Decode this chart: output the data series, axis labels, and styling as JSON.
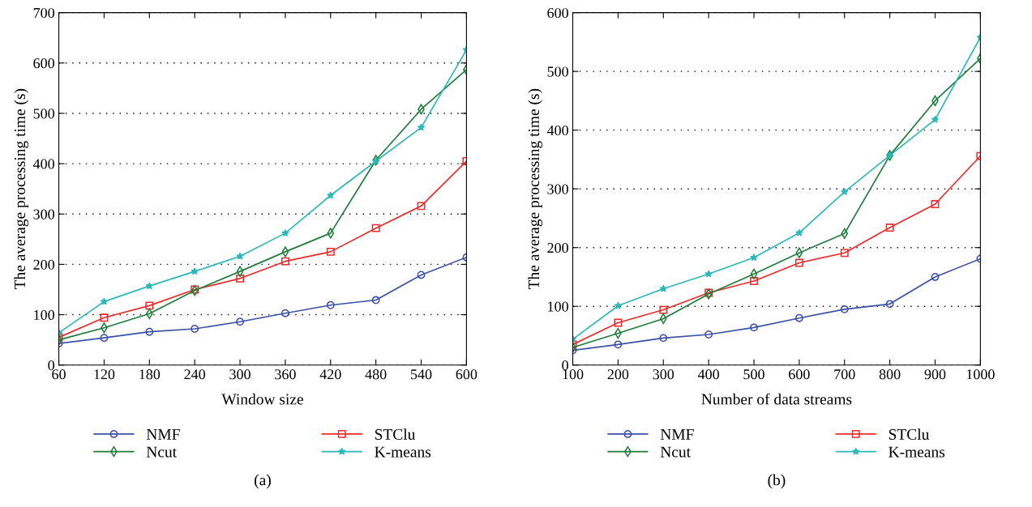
{
  "chart_data": [
    {
      "type": "line",
      "xlabel": "Window size",
      "ylabel": "The average processing time (s)",
      "x": [
        60,
        120,
        180,
        240,
        300,
        360,
        420,
        480,
        540,
        600
      ],
      "xlim": [
        60,
        600
      ],
      "xticks": [
        60,
        120,
        180,
        240,
        300,
        360,
        420,
        480,
        540,
        600
      ],
      "ylim": [
        0,
        700
      ],
      "yticks": [
        0,
        100,
        200,
        300,
        400,
        500,
        600,
        700
      ],
      "grid": "y",
      "legend": "bottom",
      "annotations": [
        "(a)"
      ],
      "series": [
        {
          "name": "NMF",
          "color": "#3a50a8",
          "marker": "circle",
          "values": [
            43,
            54,
            66,
            72,
            86,
            103,
            119,
            129,
            179,
            214
          ]
        },
        {
          "name": "STClu",
          "color": "#ee2a2a",
          "marker": "square",
          "values": [
            55,
            94,
            118,
            150,
            172,
            206,
            225,
            272,
            316,
            405
          ]
        },
        {
          "name": "Ncut",
          "color": "#1e7d3a",
          "marker": "diamond",
          "values": [
            50,
            74,
            102,
            148,
            186,
            225,
            262,
            407,
            508,
            587
          ]
        },
        {
          "name": "K-means",
          "color": "#2ab8b8",
          "marker": "star",
          "values": [
            64,
            126,
            157,
            186,
            216,
            262,
            337,
            405,
            472,
            626
          ]
        }
      ]
    },
    {
      "type": "line",
      "xlabel": "Number of data streams",
      "ylabel": "The average processing time (s)",
      "x": [
        100,
        200,
        300,
        400,
        500,
        600,
        700,
        800,
        900,
        1000
      ],
      "xlim": [
        100,
        1000
      ],
      "xticks": [
        100,
        200,
        300,
        400,
        500,
        600,
        700,
        800,
        900,
        1000
      ],
      "ylim": [
        0,
        600
      ],
      "yticks": [
        0,
        100,
        200,
        300,
        400,
        500,
        600
      ],
      "grid": "y",
      "legend": "bottom",
      "annotations": [
        "(b)"
      ],
      "series": [
        {
          "name": "NMF",
          "color": "#3a50a8",
          "marker": "circle",
          "values": [
            25,
            35,
            46,
            52,
            64,
            80,
            95,
            104,
            150,
            181
          ]
        },
        {
          "name": "STClu",
          "color": "#ee2a2a",
          "marker": "square",
          "values": [
            35,
            72,
            94,
            123,
            143,
            174,
            191,
            234,
            274,
            356
          ]
        },
        {
          "name": "Ncut",
          "color": "#1e7d3a",
          "marker": "diamond",
          "values": [
            30,
            54,
            79,
            121,
            155,
            191,
            224,
            357,
            450,
            522
          ]
        },
        {
          "name": "K-means",
          "color": "#2ab8b8",
          "marker": "star",
          "values": [
            44,
            101,
            130,
            155,
            183,
            225,
            295,
            357,
            418,
            558
          ]
        }
      ]
    }
  ]
}
